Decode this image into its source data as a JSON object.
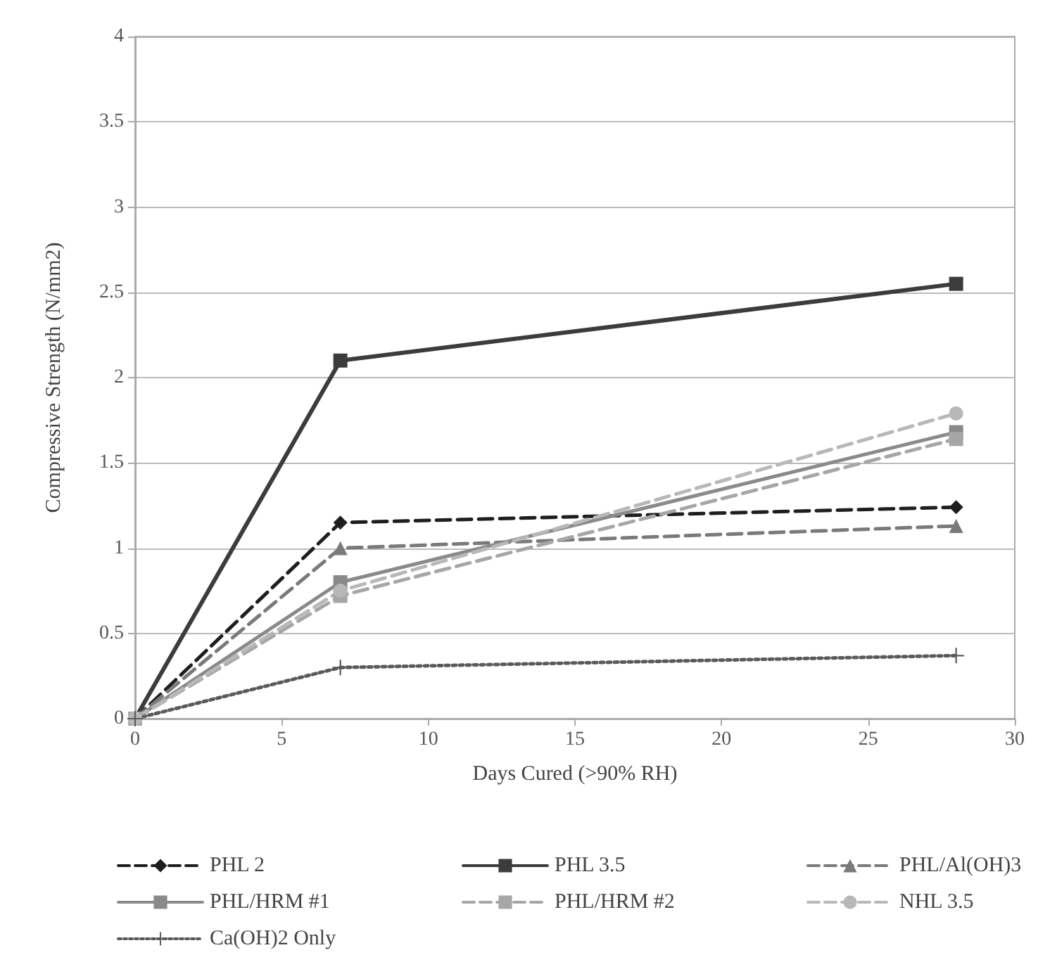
{
  "chart_data": {
    "type": "line",
    "xlabel": "Days Cured (>90% RH)",
    "ylabel": "Compressive Strength (N/mm2)",
    "xlim": [
      0,
      30
    ],
    "xticks": [
      0,
      5,
      10,
      15,
      20,
      25,
      30
    ],
    "ylim": [
      0,
      4
    ],
    "yticks": [
      0,
      0.5,
      1,
      1.5,
      2,
      2.5,
      3,
      3.5,
      4
    ],
    "grid": "y",
    "legend": "bottom",
    "x": [
      0,
      7,
      28
    ],
    "series": [
      {
        "name": "PHL 2",
        "color": "#1e1e1e",
        "values": [
          0,
          1.15,
          1.24
        ],
        "marker": "diamond",
        "line_style": "dashed"
      },
      {
        "name": "PHL 3.5",
        "color": "#3c3c3c",
        "values": [
          0,
          2.1,
          2.55
        ],
        "marker": "square",
        "line_style": "solid"
      },
      {
        "name": "PHL/Al(OH)3",
        "color": "#7a7a7a",
        "values": [
          0,
          1.0,
          1.13
        ],
        "marker": "triangle",
        "line_style": "dashed"
      },
      {
        "name": "PHL/HRM #1",
        "color": "#8a8a8a",
        "values": [
          0,
          0.8,
          1.68
        ],
        "marker": "square",
        "line_style": "solid"
      },
      {
        "name": "PHL/HRM #2",
        "color": "#a6a6a6",
        "values": [
          0,
          0.72,
          1.64
        ],
        "marker": "square",
        "line_style": "dashed"
      },
      {
        "name": "NHL 3.5",
        "color": "#b8b8b8",
        "values": [
          0,
          0.75,
          1.79
        ],
        "marker": "circle",
        "line_style": "dashed"
      },
      {
        "name": "Ca(OH)2 Only",
        "color": "#5a5a5a",
        "values": [
          0,
          0.3,
          0.37
        ],
        "marker": "cross",
        "line_style": "dotted"
      }
    ]
  }
}
